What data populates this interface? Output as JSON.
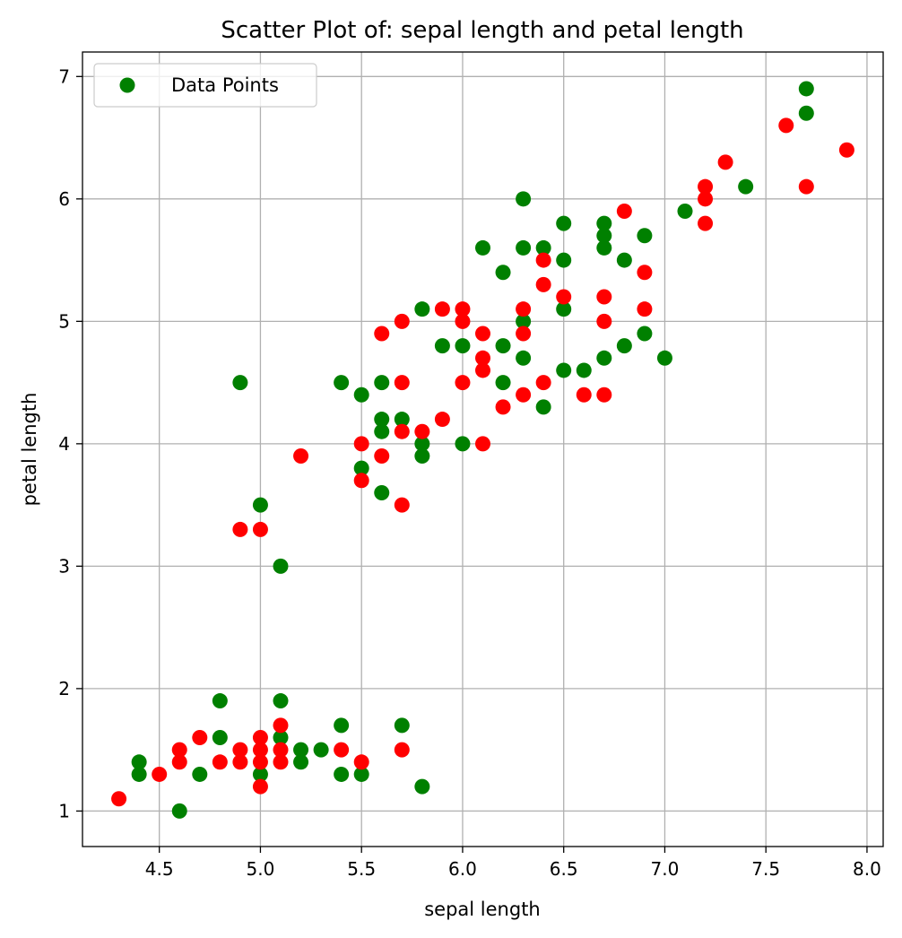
{
  "chart_data": {
    "type": "scatter",
    "title": "Scatter Plot of: sepal length and petal length",
    "xlabel": "sepal length",
    "ylabel": "petal length",
    "xlim": [
      4.12,
      8.08
    ],
    "ylim": [
      0.71,
      7.2
    ],
    "xticks": [
      "4.5",
      "5.0",
      "5.5",
      "6.0",
      "6.5",
      "7.0",
      "7.5",
      "8.0"
    ],
    "yticks": [
      "1",
      "2",
      "3",
      "4",
      "5",
      "6",
      "7"
    ],
    "grid": true,
    "legend": {
      "position": "top-left",
      "label": "Data Points"
    },
    "colors": {
      "green": "#008000",
      "red": "#ff0000",
      "grid": "#b0b0b0"
    },
    "series": [
      {
        "color": "#008000",
        "points": [
          [
            4.4,
            1.4
          ],
          [
            4.4,
            1.3
          ],
          [
            4.6,
            1.0
          ],
          [
            4.7,
            1.3
          ],
          [
            4.8,
            1.9
          ],
          [
            4.8,
            1.6
          ],
          [
            5.0,
            1.3
          ],
          [
            5.1,
            1.9
          ],
          [
            5.1,
            1.6
          ],
          [
            5.2,
            1.5
          ],
          [
            5.2,
            1.4
          ],
          [
            5.3,
            1.5
          ],
          [
            5.4,
            1.7
          ],
          [
            5.4,
            1.3
          ],
          [
            5.5,
            1.3
          ],
          [
            5.7,
            1.7
          ],
          [
            5.8,
            1.2
          ],
          [
            4.9,
            4.5
          ],
          [
            5.0,
            3.5
          ],
          [
            5.1,
            3.0
          ],
          [
            5.4,
            4.5
          ],
          [
            5.5,
            4.4
          ],
          [
            5.5,
            3.8
          ],
          [
            5.6,
            4.5
          ],
          [
            5.6,
            4.2
          ],
          [
            5.6,
            4.1
          ],
          [
            5.6,
            3.6
          ],
          [
            5.7,
            4.2
          ],
          [
            5.8,
            5.1
          ],
          [
            5.8,
            4.0
          ],
          [
            5.8,
            3.9
          ],
          [
            5.9,
            4.8
          ],
          [
            6.0,
            4.8
          ],
          [
            6.0,
            4.0
          ],
          [
            6.1,
            5.6
          ],
          [
            6.2,
            5.4
          ],
          [
            6.2,
            4.8
          ],
          [
            6.2,
            4.5
          ],
          [
            6.3,
            6.0
          ],
          [
            6.3,
            5.6
          ],
          [
            6.3,
            5.0
          ],
          [
            6.3,
            4.7
          ],
          [
            6.4,
            5.6
          ],
          [
            6.4,
            4.3
          ],
          [
            6.5,
            5.8
          ],
          [
            6.5,
            5.5
          ],
          [
            6.5,
            5.1
          ],
          [
            6.5,
            4.6
          ],
          [
            6.6,
            4.6
          ],
          [
            6.7,
            5.8
          ],
          [
            6.7,
            5.7
          ],
          [
            6.7,
            5.6
          ],
          [
            6.7,
            4.7
          ],
          [
            6.8,
            5.5
          ],
          [
            6.8,
            4.8
          ],
          [
            6.9,
            5.7
          ],
          [
            6.9,
            4.9
          ],
          [
            7.0,
            4.7
          ],
          [
            7.1,
            5.9
          ],
          [
            7.4,
            6.1
          ],
          [
            7.7,
            6.9
          ],
          [
            7.7,
            6.7
          ]
        ]
      },
      {
        "color": "#ff0000",
        "points": [
          [
            4.3,
            1.1
          ],
          [
            4.5,
            1.3
          ],
          [
            4.6,
            1.5
          ],
          [
            4.6,
            1.4
          ],
          [
            4.7,
            1.6
          ],
          [
            4.8,
            1.4
          ],
          [
            4.9,
            1.5
          ],
          [
            4.9,
            1.4
          ],
          [
            5.0,
            1.6
          ],
          [
            5.0,
            1.5
          ],
          [
            5.0,
            1.4
          ],
          [
            5.0,
            1.2
          ],
          [
            5.1,
            1.7
          ],
          [
            5.1,
            1.5
          ],
          [
            5.1,
            1.4
          ],
          [
            5.4,
            1.5
          ],
          [
            5.5,
            1.4
          ],
          [
            5.7,
            1.5
          ],
          [
            4.9,
            3.3
          ],
          [
            5.0,
            3.3
          ],
          [
            5.2,
            3.9
          ],
          [
            5.5,
            4.0
          ],
          [
            5.5,
            3.7
          ],
          [
            5.6,
            4.9
          ],
          [
            5.6,
            3.9
          ],
          [
            5.7,
            5.0
          ],
          [
            5.7,
            4.5
          ],
          [
            5.7,
            4.1
          ],
          [
            5.7,
            3.5
          ],
          [
            5.8,
            4.1
          ],
          [
            5.9,
            5.1
          ],
          [
            5.9,
            4.2
          ],
          [
            6.0,
            5.1
          ],
          [
            6.0,
            5.0
          ],
          [
            6.0,
            4.5
          ],
          [
            6.1,
            4.9
          ],
          [
            6.1,
            4.7
          ],
          [
            6.1,
            4.6
          ],
          [
            6.1,
            4.0
          ],
          [
            6.2,
            4.3
          ],
          [
            6.3,
            5.1
          ],
          [
            6.3,
            4.9
          ],
          [
            6.3,
            4.4
          ],
          [
            6.4,
            5.5
          ],
          [
            6.4,
            5.3
          ],
          [
            6.4,
            4.5
          ],
          [
            6.5,
            5.2
          ],
          [
            6.6,
            4.4
          ],
          [
            6.7,
            5.2
          ],
          [
            6.7,
            5.0
          ],
          [
            6.7,
            4.4
          ],
          [
            6.8,
            5.9
          ],
          [
            6.9,
            5.4
          ],
          [
            6.9,
            5.1
          ],
          [
            7.2,
            6.1
          ],
          [
            7.2,
            6.0
          ],
          [
            7.2,
            5.8
          ],
          [
            7.3,
            6.3
          ],
          [
            7.6,
            6.6
          ],
          [
            7.7,
            6.1
          ],
          [
            7.9,
            6.4
          ]
        ]
      }
    ]
  }
}
